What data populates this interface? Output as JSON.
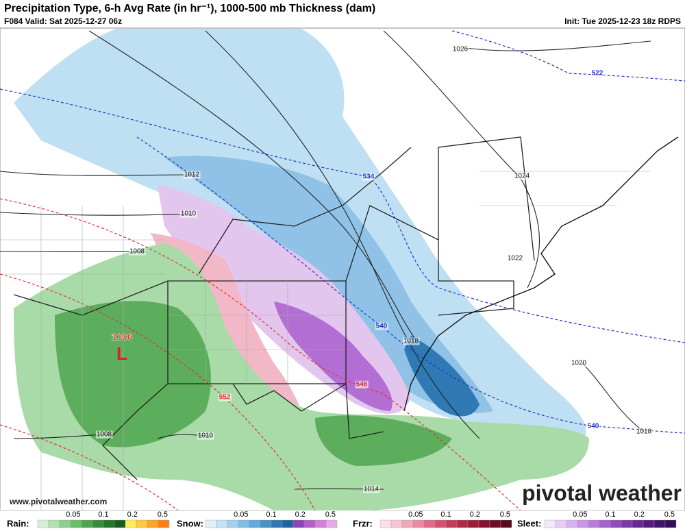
{
  "header": {
    "title": "Precipitation Type, 6-h Avg Rate (in hr⁻¹), 1000-500 mb Thickness (dam)",
    "valid": "F084 Valid: Sat 2025-12-27 06z",
    "init": "Init: Tue 2025-12-23 18z RDPS"
  },
  "map": {
    "pressure_labels": [
      "1026",
      "1024",
      "1022",
      "1020",
      "1018",
      "1018",
      "1012",
      "1010",
      "1010",
      "1008",
      "1008",
      "1014"
    ],
    "thickness_labels": [
      "522",
      "534",
      "540",
      "540"
    ],
    "warm_thickness_labels": [
      "552",
      "546"
    ],
    "low": {
      "pressure": "1006",
      "symbol": "L"
    }
  },
  "branding": {
    "logo": "pivotal weather",
    "url": "www.pivotalweather.com"
  },
  "legend": [
    {
      "label": "Rain:",
      "ticks": [
        0.05,
        0.1,
        0.2,
        0.5
      ],
      "colors": [
        "#d4f0d4",
        "#b2e0b0",
        "#8fcf8d",
        "#6bbd6a",
        "#4da64d",
        "#378e3a",
        "#23752a",
        "#175e1e",
        "#ffee58",
        "#ffc93c",
        "#ffa526",
        "#ff8017"
      ]
    },
    {
      "label": "Snow:",
      "ticks": [
        0.05,
        0.1,
        0.2,
        0.5
      ],
      "colors": [
        "#e0f0fb",
        "#c3e2f5",
        "#a3d0ee",
        "#82bde5",
        "#63a9dc",
        "#4592c9",
        "#2f7ab4",
        "#1f649e",
        "#8a44b8",
        "#b35fc9",
        "#d47fd8",
        "#e9a8e6"
      ]
    },
    {
      "label": "Frzr:",
      "ticks": [
        0.05,
        0.1,
        0.2,
        0.5
      ],
      "colors": [
        "#fbe0e8",
        "#f7c6d4",
        "#f2a8bc",
        "#ec8aa2",
        "#e16c88",
        "#d5516f",
        "#c43b59",
        "#b02a47",
        "#9a1d39",
        "#83142d",
        "#6e0e24",
        "#5a0a1c"
      ]
    },
    {
      "label": "Sleet:",
      "ticks": [
        0.05,
        0.1,
        0.2,
        0.5
      ],
      "colors": [
        "#f4e6fb",
        "#e7cdf5",
        "#d8b2ef",
        "#c996e6",
        "#b77bdc",
        "#a562cf",
        "#914bbf",
        "#7b38ac",
        "#672896",
        "#541c7f",
        "#42136a",
        "#330d55"
      ]
    }
  ]
}
